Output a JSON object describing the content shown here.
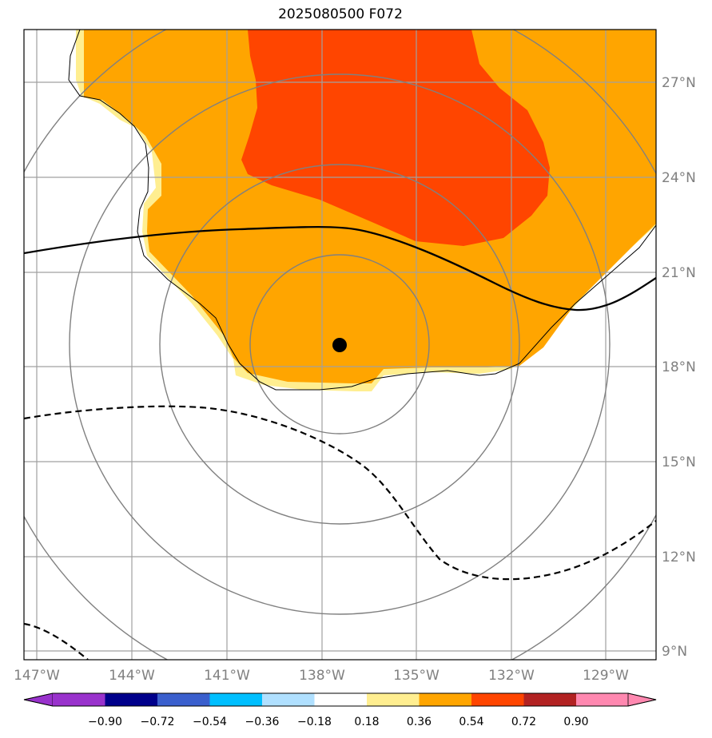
{
  "title": "2025080500 F072",
  "map": {
    "lat_labels": [
      "27°N",
      "24°N",
      "21°N",
      "18°N",
      "15°N",
      "12°N",
      "9°N"
    ],
    "lon_labels": [
      "147°W",
      "144°W",
      "141°W",
      "138°W",
      "135°W",
      "132°W",
      "129°W"
    ],
    "center_marker": "storm-center-dot",
    "colors": {
      "shade_018_036": "#ffee90",
      "shade_036_054": "#ffa500",
      "shade_054_072": "#ff4500",
      "gridline": "#a0a0a0",
      "range_ring": "#808080",
      "contour": "#000000"
    }
  },
  "colorbar": {
    "tick_labels": [
      "−0.90",
      "−0.72",
      "−0.54",
      "−0.36",
      "−0.18",
      "0.18",
      "0.36",
      "0.54",
      "0.72",
      "0.90"
    ],
    "bins": [
      {
        "color": "#9932cc"
      },
      {
        "color": "#00008b"
      },
      {
        "color": "#3a5fcd"
      },
      {
        "color": "#00bfff"
      },
      {
        "color": "#b0e0ff"
      },
      {
        "color": "#ffffff"
      },
      {
        "color": "#ffee90"
      },
      {
        "color": "#ffa500"
      },
      {
        "color": "#ff4500"
      },
      {
        "color": "#b22222"
      },
      {
        "color": "#ff88b0"
      },
      {
        "color": "#ff88b0"
      }
    ]
  }
}
